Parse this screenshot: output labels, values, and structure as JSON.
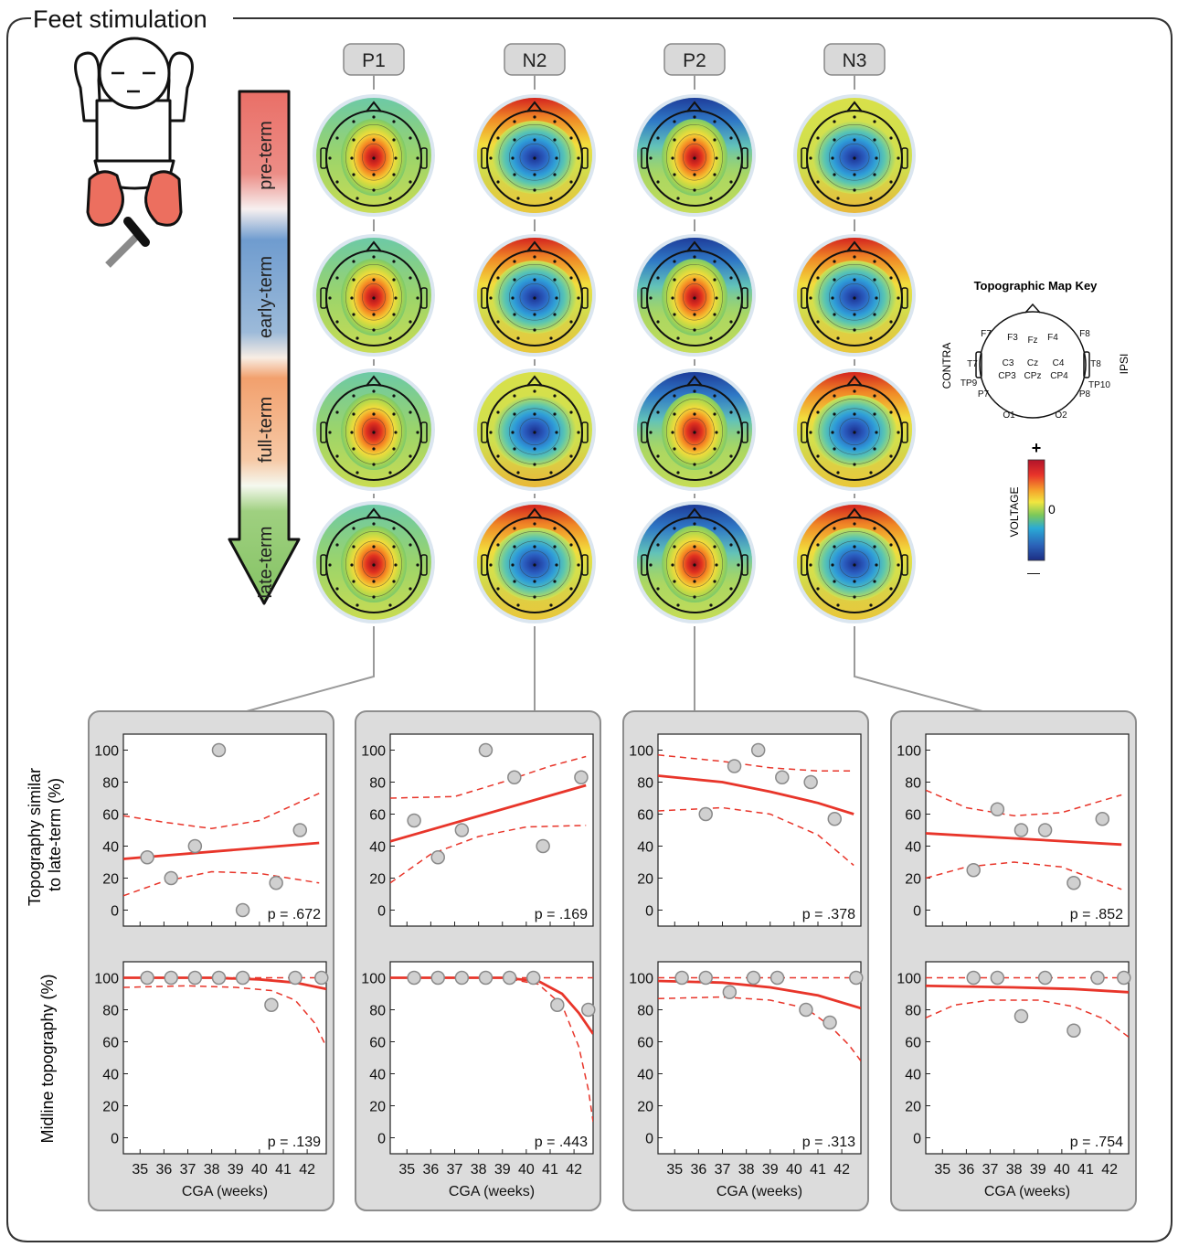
{
  "title": "Feet stimulation",
  "components": [
    "P1",
    "N2",
    "P2",
    "N3"
  ],
  "stages": [
    "pre-term",
    "early-term",
    "full-term",
    "late-term"
  ],
  "key": {
    "title": "Topographic Map Key",
    "contra": "CONTRA",
    "ipsi": "IPSI",
    "electrodes": [
      "F7",
      "F3",
      "Fz",
      "F4",
      "F8",
      "T7",
      "C3",
      "Cz",
      "C4",
      "T8",
      "CP3",
      "CPz",
      "CP4",
      "TP9",
      "TP10",
      "P7",
      "P8",
      "O1",
      "O2"
    ],
    "voltage_label": "VOLTAGE",
    "plus": "+",
    "zero": "0",
    "minus": "—"
  },
  "colors": {
    "fit": "#e8352a",
    "marker_fill": "#d0d0d0",
    "marker_edge": "#8a8a8a",
    "panel_bg": "#dcdcdc"
  },
  "chart_data": [
    {
      "type": "scatter",
      "component": "P1",
      "xlabel": "CGA (weeks)",
      "xticks": [
        35,
        36,
        37,
        38,
        39,
        40,
        41,
        42
      ],
      "xlim": [
        34.3,
        42.8
      ],
      "rows": [
        {
          "ylabel": "Topography similar\nto late-term (%)",
          "ylim": [
            -10,
            110
          ],
          "yticks": [
            0,
            20,
            40,
            60,
            80,
            100
          ],
          "p_label": "p = .672",
          "points": [
            [
              35.3,
              33
            ],
            [
              36.3,
              20
            ],
            [
              37.3,
              40
            ],
            [
              38.3,
              100
            ],
            [
              39.3,
              0
            ],
            [
              40.7,
              17
            ],
            [
              41.7,
              50
            ]
          ],
          "fit": [
            [
              34.3,
              32
            ],
            [
              42.5,
              42
            ]
          ],
          "ci_upper": [
            [
              34.3,
              59
            ],
            [
              36,
              55
            ],
            [
              38,
              51
            ],
            [
              40,
              56
            ],
            [
              42.5,
              73
            ]
          ],
          "ci_lower": [
            [
              34.3,
              9
            ],
            [
              36,
              18
            ],
            [
              38,
              24
            ],
            [
              40,
              23
            ],
            [
              42.5,
              17
            ]
          ]
        },
        {
          "ylabel": "Midline topography (%)",
          "ylim": [
            -10,
            110
          ],
          "yticks": [
            0,
            20,
            40,
            60,
            80,
            100
          ],
          "p_label": "p = .139",
          "points": [
            [
              35.3,
              100
            ],
            [
              36.3,
              100
            ],
            [
              37.3,
              100
            ],
            [
              38.3,
              100
            ],
            [
              39.3,
              100
            ],
            [
              40.5,
              83
            ],
            [
              41.5,
              100
            ],
            [
              42.6,
              100
            ]
          ],
          "fit": [
            [
              34.3,
              100
            ],
            [
              38,
              100
            ],
            [
              40,
              99
            ],
            [
              41.5,
              97
            ],
            [
              42.8,
              93
            ]
          ],
          "ci_upper": [
            [
              34.3,
              100
            ],
            [
              42.8,
              100
            ]
          ],
          "ci_lower": [
            [
              34.3,
              94
            ],
            [
              37,
              95
            ],
            [
              39,
              94
            ],
            [
              40.5,
              92
            ],
            [
              41.5,
              86
            ],
            [
              42.3,
              72
            ],
            [
              42.8,
              57
            ]
          ]
        }
      ]
    },
    {
      "type": "scatter",
      "component": "N2",
      "xlabel": "CGA (weeks)",
      "xticks": [
        35,
        36,
        37,
        38,
        39,
        40,
        41,
        42
      ],
      "xlim": [
        34.3,
        42.8
      ],
      "rows": [
        {
          "ylabel": "",
          "ylim": [
            -10,
            110
          ],
          "yticks": [
            0,
            20,
            40,
            60,
            80,
            100
          ],
          "p_label": "p = .169",
          "points": [
            [
              35.3,
              56
            ],
            [
              36.3,
              33
            ],
            [
              37.3,
              50
            ],
            [
              38.3,
              100
            ],
            [
              39.5,
              83
            ],
            [
              40.7,
              40
            ],
            [
              42.3,
              83
            ]
          ],
          "fit": [
            [
              34.3,
              43
            ],
            [
              42.5,
              78
            ]
          ],
          "ci_upper": [
            [
              34.3,
              70
            ],
            [
              37,
              71
            ],
            [
              39,
              80
            ],
            [
              41,
              90
            ],
            [
              42.5,
              96
            ]
          ],
          "ci_lower": [
            [
              34.3,
              17
            ],
            [
              36,
              35
            ],
            [
              38,
              46
            ],
            [
              40,
              52
            ],
            [
              42.5,
              53
            ]
          ]
        },
        {
          "ylabel": "",
          "ylim": [
            -10,
            110
          ],
          "yticks": [
            0,
            20,
            40,
            60,
            80,
            100
          ],
          "p_label": "p = .443",
          "points": [
            [
              35.3,
              100
            ],
            [
              36.3,
              100
            ],
            [
              37.3,
              100
            ],
            [
              38.3,
              100
            ],
            [
              39.3,
              100
            ],
            [
              40.3,
              100
            ],
            [
              41.3,
              83
            ],
            [
              42.6,
              80
            ]
          ],
          "fit": [
            [
              34.3,
              100
            ],
            [
              39,
              100
            ],
            [
              40.5,
              98
            ],
            [
              41.5,
              90
            ],
            [
              42.2,
              78
            ],
            [
              42.8,
              65
            ]
          ],
          "ci_upper": [
            [
              34.3,
              100
            ],
            [
              42.8,
              100
            ]
          ],
          "ci_lower": [
            [
              34.3,
              100
            ],
            [
              39,
              100
            ],
            [
              40.5,
              96
            ],
            [
              41.5,
              83
            ],
            [
              42.2,
              57
            ],
            [
              42.6,
              30
            ],
            [
              42.8,
              10
            ]
          ]
        }
      ]
    },
    {
      "type": "scatter",
      "component": "P2",
      "xlabel": "CGA (weeks)",
      "xticks": [
        35,
        36,
        37,
        38,
        39,
        40,
        41,
        42
      ],
      "xlim": [
        34.3,
        42.8
      ],
      "rows": [
        {
          "ylabel": "",
          "ylim": [
            -10,
            110
          ],
          "yticks": [
            0,
            20,
            40,
            60,
            80,
            100
          ],
          "p_label": "p = .378",
          "points": [
            [
              36.3,
              60
            ],
            [
              37.5,
              90
            ],
            [
              38.5,
              100
            ],
            [
              39.5,
              83
            ],
            [
              40.7,
              80
            ],
            [
              41.7,
              57
            ]
          ],
          "fit": [
            [
              34.3,
              84
            ],
            [
              37,
              80
            ],
            [
              39,
              74
            ],
            [
              41,
              67
            ],
            [
              42.5,
              60
            ]
          ],
          "ci_upper": [
            [
              34.3,
              97
            ],
            [
              37,
              93
            ],
            [
              39,
              89
            ],
            [
              41,
              87
            ],
            [
              42.5,
              87
            ]
          ],
          "ci_lower": [
            [
              34.3,
              62
            ],
            [
              37,
              64
            ],
            [
              39,
              60
            ],
            [
              41,
              47
            ],
            [
              42.5,
              28
            ]
          ]
        },
        {
          "ylabel": "",
          "ylim": [
            -10,
            110
          ],
          "yticks": [
            0,
            20,
            40,
            60,
            80,
            100
          ],
          "p_label": "p = .313",
          "points": [
            [
              35.3,
              100
            ],
            [
              36.3,
              100
            ],
            [
              37.3,
              91
            ],
            [
              38.3,
              100
            ],
            [
              39.3,
              100
            ],
            [
              40.5,
              80
            ],
            [
              41.5,
              72
            ],
            [
              42.6,
              100
            ]
          ],
          "fit": [
            [
              34.3,
              98
            ],
            [
              37,
              97
            ],
            [
              39,
              94
            ],
            [
              41,
              89
            ],
            [
              42.8,
              81
            ]
          ],
          "ci_upper": [
            [
              34.3,
              100
            ],
            [
              42.8,
              100
            ]
          ],
          "ci_lower": [
            [
              34.3,
              87
            ],
            [
              37,
              88
            ],
            [
              39,
              86
            ],
            [
              40.5,
              81
            ],
            [
              41.5,
              70
            ],
            [
              42.3,
              58
            ],
            [
              42.8,
              48
            ]
          ]
        }
      ]
    },
    {
      "type": "scatter",
      "component": "N3",
      "xlabel": "CGA (weeks)",
      "xticks": [
        35,
        36,
        37,
        38,
        39,
        40,
        41,
        42
      ],
      "xlim": [
        34.3,
        42.8
      ],
      "rows": [
        {
          "ylabel": "",
          "ylim": [
            -10,
            110
          ],
          "yticks": [
            0,
            20,
            40,
            60,
            80,
            100
          ],
          "p_label": "p = .852",
          "points": [
            [
              36.3,
              25
            ],
            [
              37.3,
              63
            ],
            [
              38.3,
              50
            ],
            [
              39.3,
              50
            ],
            [
              40.5,
              17
            ],
            [
              41.7,
              57
            ]
          ],
          "fit": [
            [
              34.3,
              48
            ],
            [
              42.5,
              41
            ]
          ],
          "ci_upper": [
            [
              34.3,
              75
            ],
            [
              36,
              64
            ],
            [
              38,
              59
            ],
            [
              40,
              61
            ],
            [
              42.5,
              72
            ]
          ],
          "ci_lower": [
            [
              34.3,
              20
            ],
            [
              36,
              27
            ],
            [
              38,
              30
            ],
            [
              40,
              27
            ],
            [
              42.5,
              13
            ]
          ]
        },
        {
          "ylabel": "",
          "ylim": [
            -10,
            110
          ],
          "yticks": [
            0,
            20,
            40,
            60,
            80,
            100
          ],
          "p_label": "p = .754",
          "points": [
            [
              36.3,
              100
            ],
            [
              37.3,
              100
            ],
            [
              38.3,
              76
            ],
            [
              39.3,
              100
            ],
            [
              40.5,
              67
            ],
            [
              41.5,
              100
            ],
            [
              42.6,
              100
            ]
          ],
          "fit": [
            [
              34.3,
              95
            ],
            [
              38,
              94
            ],
            [
              40.5,
              93
            ],
            [
              42.8,
              91
            ]
          ],
          "ci_upper": [
            [
              34.3,
              100
            ],
            [
              42.8,
              100
            ]
          ],
          "ci_lower": [
            [
              34.3,
              75
            ],
            [
              35.5,
              83
            ],
            [
              37,
              86
            ],
            [
              39,
              86
            ],
            [
              40.5,
              82
            ],
            [
              41.8,
              74
            ],
            [
              42.8,
              63
            ]
          ]
        }
      ]
    }
  ]
}
